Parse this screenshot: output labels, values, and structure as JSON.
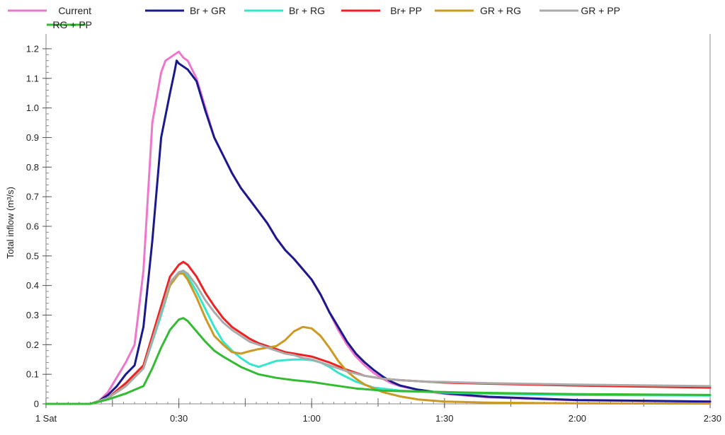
{
  "chart_data": {
    "type": "line",
    "title": "",
    "xlabel": "",
    "ylabel": "Total inflow (m³/s)",
    "xlim": [
      0,
      150
    ],
    "ylim": [
      0,
      1.25
    ],
    "grid": false,
    "legend_position": "top",
    "x_ticks": [
      {
        "value": 0,
        "label": "1 Sat"
      },
      {
        "value": 30,
        "label": "0:30"
      },
      {
        "value": 60,
        "label": "1:00"
      },
      {
        "value": 90,
        "label": "1:30"
      },
      {
        "value": 120,
        "label": "2:00"
      },
      {
        "value": 150,
        "label": "2:30"
      }
    ],
    "y_ticks": [
      {
        "value": 0,
        "label": "0"
      },
      {
        "value": 0.1,
        "label": "0.1"
      },
      {
        "value": 0.2,
        "label": "0.2"
      },
      {
        "value": 0.3,
        "label": "0.3"
      },
      {
        "value": 0.4,
        "label": "0.4"
      },
      {
        "value": 0.5,
        "label": "0.5"
      },
      {
        "value": 0.6,
        "label": "0.6"
      },
      {
        "value": 0.7,
        "label": "0.7"
      },
      {
        "value": 0.8,
        "label": "0.8"
      },
      {
        "value": 0.9,
        "label": "0.9"
      },
      {
        "value": 1.0,
        "label": "1.0"
      },
      {
        "value": 1.1,
        "label": "1.1"
      },
      {
        "value": 1.2,
        "label": "1.2"
      }
    ],
    "series": [
      {
        "name": "Current",
        "color": "#ee77cc",
        "x": [
          0,
          10,
          12,
          14,
          16,
          18,
          20,
          22,
          24,
          26,
          27,
          28,
          29,
          30,
          31,
          32,
          34,
          36,
          38,
          40,
          42,
          44,
          46,
          48,
          50,
          52,
          54,
          56,
          58,
          60,
          62,
          64,
          66,
          68,
          70,
          72,
          74,
          76,
          78,
          80,
          84,
          88,
          90,
          100,
          120,
          150
        ],
        "y": [
          0,
          0,
          0.01,
          0.04,
          0.09,
          0.14,
          0.2,
          0.45,
          0.95,
          1.12,
          1.16,
          1.17,
          1.18,
          1.19,
          1.17,
          1.16,
          1.1,
          1.0,
          0.9,
          0.84,
          0.78,
          0.73,
          0.69,
          0.65,
          0.61,
          0.56,
          0.52,
          0.49,
          0.455,
          0.42,
          0.37,
          0.31,
          0.25,
          0.2,
          0.16,
          0.13,
          0.105,
          0.085,
          0.07,
          0.06,
          0.047,
          0.038,
          0.034,
          0.022,
          0.012,
          0.008
        ]
      },
      {
        "name": "Br + GR",
        "color": "#1a1a8c",
        "x": [
          0,
          10,
          12,
          14,
          16,
          18,
          20,
          22,
          24,
          26,
          28,
          29,
          29.5,
          30,
          31,
          32,
          34,
          36,
          38,
          40,
          42,
          44,
          46,
          48,
          50,
          52,
          54,
          56,
          58,
          60,
          62,
          64,
          66,
          68,
          70,
          72,
          74,
          76,
          78,
          80,
          84,
          88,
          90,
          100,
          120,
          150
        ],
        "y": [
          0,
          0,
          0.01,
          0.03,
          0.06,
          0.1,
          0.13,
          0.26,
          0.55,
          0.9,
          1.05,
          1.12,
          1.16,
          1.15,
          1.14,
          1.13,
          1.09,
          0.99,
          0.9,
          0.84,
          0.78,
          0.73,
          0.69,
          0.65,
          0.61,
          0.56,
          0.52,
          0.49,
          0.455,
          0.42,
          0.37,
          0.31,
          0.26,
          0.21,
          0.17,
          0.14,
          0.115,
          0.093,
          0.075,
          0.062,
          0.048,
          0.04,
          0.036,
          0.024,
          0.013,
          0.008
        ]
      },
      {
        "name": "Br + RG",
        "color": "#33e6cc",
        "x": [
          0,
          10,
          14,
          18,
          22,
          26,
          28,
          30,
          31,
          32,
          34,
          36,
          38,
          40,
          42,
          44,
          46,
          48,
          50,
          52,
          54,
          56,
          58,
          60,
          62,
          64,
          66,
          70,
          74,
          80,
          90,
          100,
          120,
          150
        ],
        "y": [
          0,
          0,
          0.02,
          0.06,
          0.12,
          0.3,
          0.4,
          0.44,
          0.45,
          0.43,
          0.38,
          0.32,
          0.26,
          0.21,
          0.18,
          0.155,
          0.135,
          0.125,
          0.135,
          0.145,
          0.148,
          0.15,
          0.15,
          0.148,
          0.14,
          0.125,
          0.105,
          0.075,
          0.055,
          0.045,
          0.038,
          0.034,
          0.03,
          0.028
        ]
      },
      {
        "name": "Br+ PP",
        "color": "#ee2222",
        "x": [
          0,
          10,
          14,
          18,
          22,
          26,
          28,
          30,
          31,
          32,
          34,
          36,
          38,
          40,
          42,
          44,
          46,
          48,
          50,
          52,
          54,
          56,
          58,
          60,
          64,
          68,
          72,
          76,
          80,
          86,
          90,
          100,
          120,
          150
        ],
        "y": [
          0,
          0,
          0.02,
          0.07,
          0.13,
          0.33,
          0.43,
          0.47,
          0.48,
          0.47,
          0.43,
          0.375,
          0.33,
          0.29,
          0.26,
          0.24,
          0.22,
          0.205,
          0.195,
          0.185,
          0.175,
          0.17,
          0.165,
          0.16,
          0.14,
          0.115,
          0.095,
          0.085,
          0.08,
          0.075,
          0.072,
          0.068,
          0.062,
          0.055
        ]
      },
      {
        "name": "GR + RG",
        "color": "#cc9922",
        "x": [
          0,
          10,
          14,
          18,
          22,
          26,
          28,
          30,
          31,
          32,
          34,
          36,
          38,
          40,
          42,
          44,
          46,
          48,
          50,
          52,
          54,
          56,
          58,
          60,
          62,
          64,
          66,
          68,
          70,
          72,
          76,
          80,
          84,
          88,
          90,
          100,
          120,
          150
        ],
        "y": [
          0,
          0,
          0.02,
          0.06,
          0.12,
          0.31,
          0.4,
          0.44,
          0.44,
          0.42,
          0.36,
          0.29,
          0.23,
          0.2,
          0.175,
          0.17,
          0.178,
          0.185,
          0.19,
          0.195,
          0.215,
          0.245,
          0.26,
          0.255,
          0.23,
          0.19,
          0.145,
          0.11,
          0.085,
          0.065,
          0.04,
          0.025,
          0.015,
          0.01,
          0.008,
          0.004,
          0.002,
          0.001
        ]
      },
      {
        "name": "GR + PP",
        "color": "#aaaaaa",
        "x": [
          0,
          10,
          14,
          18,
          22,
          26,
          28,
          30,
          31,
          32,
          34,
          36,
          38,
          40,
          42,
          44,
          46,
          48,
          50,
          52,
          54,
          56,
          58,
          60,
          64,
          68,
          72,
          76,
          80,
          86,
          90,
          100,
          120,
          150
        ],
        "y": [
          0,
          0,
          0.02,
          0.06,
          0.12,
          0.31,
          0.41,
          0.445,
          0.45,
          0.44,
          0.4,
          0.35,
          0.31,
          0.275,
          0.25,
          0.23,
          0.21,
          0.2,
          0.19,
          0.18,
          0.17,
          0.165,
          0.155,
          0.15,
          0.13,
          0.11,
          0.095,
          0.085,
          0.08,
          0.075,
          0.074,
          0.07,
          0.065,
          0.06
        ]
      },
      {
        "name": "RG + PP",
        "color": "#33bb33",
        "x": [
          0,
          10,
          14,
          18,
          22,
          24,
          26,
          28,
          30,
          31,
          32,
          34,
          36,
          38,
          40,
          44,
          48,
          52,
          56,
          60,
          64,
          70,
          76,
          80,
          90,
          100,
          120,
          150
        ],
        "y": [
          0,
          0,
          0.015,
          0.035,
          0.06,
          0.12,
          0.19,
          0.25,
          0.285,
          0.29,
          0.28,
          0.245,
          0.21,
          0.18,
          0.16,
          0.125,
          0.1,
          0.088,
          0.08,
          0.074,
          0.065,
          0.052,
          0.045,
          0.043,
          0.04,
          0.037,
          0.033,
          0.03
        ]
      }
    ]
  }
}
